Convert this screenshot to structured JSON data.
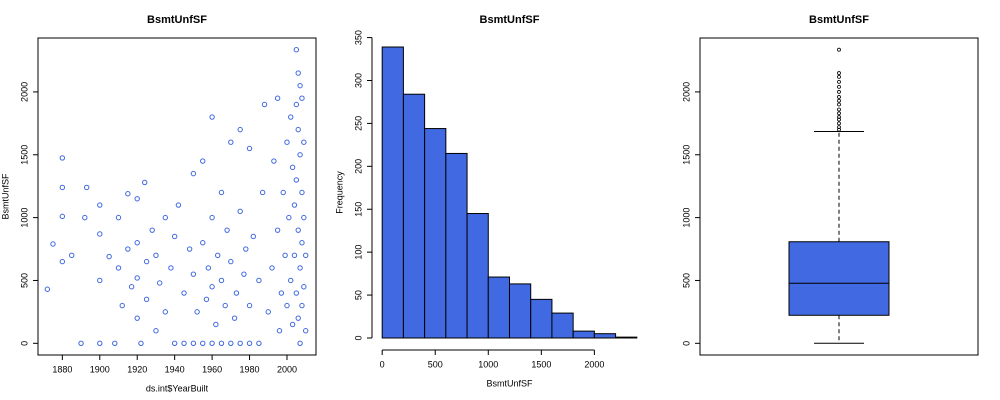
{
  "chart_data": [
    {
      "type": "scatter",
      "title": "BsmtUnfSF",
      "xlabel": "ds.int$YearBuilt",
      "ylabel": "BsmtUnfSF",
      "color": "#4169e1",
      "box": true,
      "x": [
        1872,
        1875,
        1880,
        1880,
        1880,
        1880,
        1885,
        1890,
        1892,
        1893,
        1900,
        1900,
        1900,
        1900,
        1905,
        1908,
        1910,
        1910,
        1912,
        1915,
        1915,
        1917,
        1920,
        1920,
        1920,
        1920,
        1922,
        1924,
        1925,
        1925,
        1928,
        1930,
        1930,
        1932,
        1935,
        1935,
        1938,
        1940,
        1940,
        1942,
        1945,
        1945,
        1948,
        1950,
        1950,
        1950,
        1952,
        1955,
        1955,
        1955,
        1957,
        1958,
        1960,
        1960,
        1960,
        1960,
        1962,
        1963,
        1965,
        1965,
        1965,
        1967,
        1968,
        1970,
        1970,
        1970,
        1972,
        1973,
        1975,
        1975,
        1975,
        1977,
        1978,
        1980,
        1980,
        1980,
        1982,
        1985,
        1985,
        1987,
        1988,
        1990,
        1992,
        1993,
        1995,
        1995,
        1996,
        1997,
        1998,
        1999,
        2000,
        2000,
        2001,
        2002,
        2002,
        2003,
        2003,
        2004,
        2004,
        2005,
        2005,
        2005,
        2005,
        2006,
        2006,
        2006,
        2006,
        2007,
        2007,
        2007,
        2007,
        2008,
        2008,
        2008,
        2008,
        2009,
        2009,
        2009,
        2010,
        2010
      ],
      "values": [
        430,
        790,
        1475,
        1240,
        1010,
        650,
        700,
        0,
        1000,
        1240,
        0,
        870,
        1100,
        500,
        690,
        0,
        1000,
        600,
        300,
        1190,
        750,
        450,
        1150,
        800,
        520,
        200,
        0,
        1280,
        650,
        350,
        900,
        700,
        100,
        480,
        1000,
        250,
        600,
        850,
        0,
        1100,
        400,
        0,
        750,
        1350,
        550,
        0,
        250,
        1450,
        800,
        0,
        350,
        600,
        1800,
        1000,
        450,
        0,
        150,
        700,
        1200,
        500,
        0,
        300,
        900,
        1600,
        650,
        0,
        200,
        400,
        1700,
        1050,
        0,
        550,
        750,
        1550,
        300,
        0,
        850,
        0,
        500,
        1200,
        1900,
        250,
        600,
        1450,
        1950,
        900,
        100,
        400,
        1200,
        700,
        1600,
        300,
        1000,
        1800,
        500,
        1400,
        150,
        1100,
        700,
        2336,
        1900,
        1300,
        400,
        2150,
        1700,
        900,
        200,
        2050,
        1500,
        600,
        0,
        1950,
        1200,
        800,
        300,
        1600,
        1000,
        450,
        700,
        100
      ],
      "xlim": [
        1867,
        2015.5
      ],
      "ylim": [
        -93,
        2429
      ],
      "xticks": [
        1880,
        1900,
        1920,
        1940,
        1960,
        1980,
        2000
      ],
      "yticks": [
        0,
        500,
        1000,
        1500,
        2000
      ]
    },
    {
      "type": "histogram",
      "title": "BsmtUnfSF",
      "xlabel": "BsmtUnfSF",
      "ylabel": "Frequency",
      "color": "#4169e1",
      "box": false,
      "bins": [
        0,
        200,
        400,
        600,
        800,
        1000,
        1200,
        1400,
        1600,
        1800,
        2000,
        2200,
        2400
      ],
      "values": [
        339,
        284,
        244,
        215,
        145,
        71,
        63,
        45,
        29,
        8,
        5,
        1
      ],
      "xlim": [
        -96,
        2496
      ],
      "ylim": [
        -14,
        353
      ],
      "xticks": [
        0,
        500,
        1000,
        1500,
        2000
      ],
      "yticks": [
        0,
        50,
        100,
        150,
        200,
        250,
        300,
        350
      ]
    },
    {
      "type": "box",
      "title": "BsmtUnfSF",
      "color": "#4169e1",
      "box": true,
      "whisker_low": 0,
      "q1": 223,
      "median": 478,
      "q3": 808,
      "whisker_high": 1685,
      "outliers": [
        1700,
        1720,
        1750,
        1780,
        1800,
        1830,
        1860,
        1900,
        1930,
        1960,
        2000,
        2040,
        2080,
        2120,
        2150,
        2336
      ],
      "ylim": [
        -93,
        2429
      ],
      "yticks": [
        0,
        500,
        1000,
        1500,
        2000
      ]
    }
  ]
}
